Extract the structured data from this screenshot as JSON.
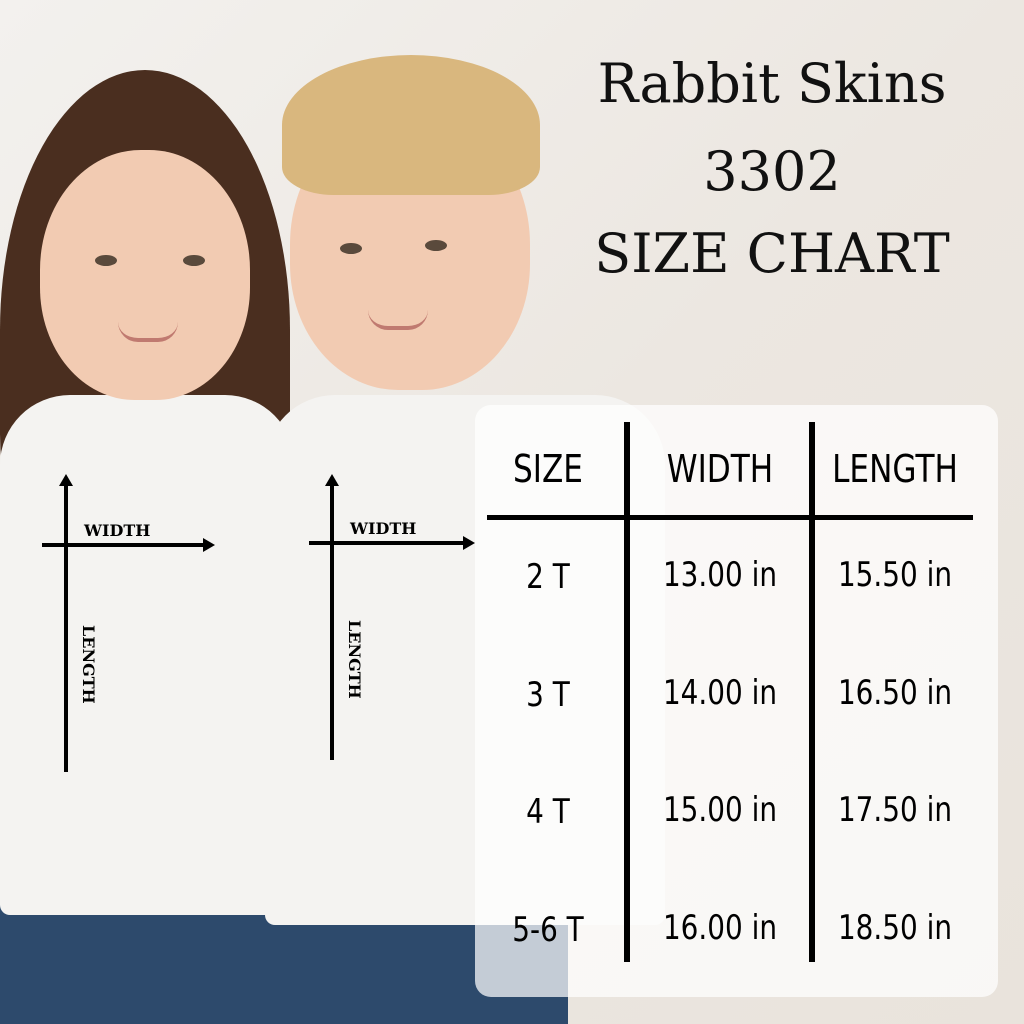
{
  "title": {
    "line1": "Rabbit Skins",
    "line2": "3302",
    "line3": "SIZE CHART"
  },
  "measure_labels": {
    "width": "WIDTH",
    "length": "LENGTH"
  },
  "table": {
    "headers": [
      "SIZE",
      "WIDTH",
      "LENGTH"
    ],
    "rows": [
      {
        "size": "2 T",
        "width": "13.00 in",
        "length": "15.50 in"
      },
      {
        "size": "3 T",
        "width": "14.00 in",
        "length": "16.50 in"
      },
      {
        "size": "4 T",
        "width": "15.00 in",
        "length": "17.50 in"
      },
      {
        "size": "5-6 T",
        "width": "16.00 in",
        "length": "18.50 in"
      }
    ]
  }
}
